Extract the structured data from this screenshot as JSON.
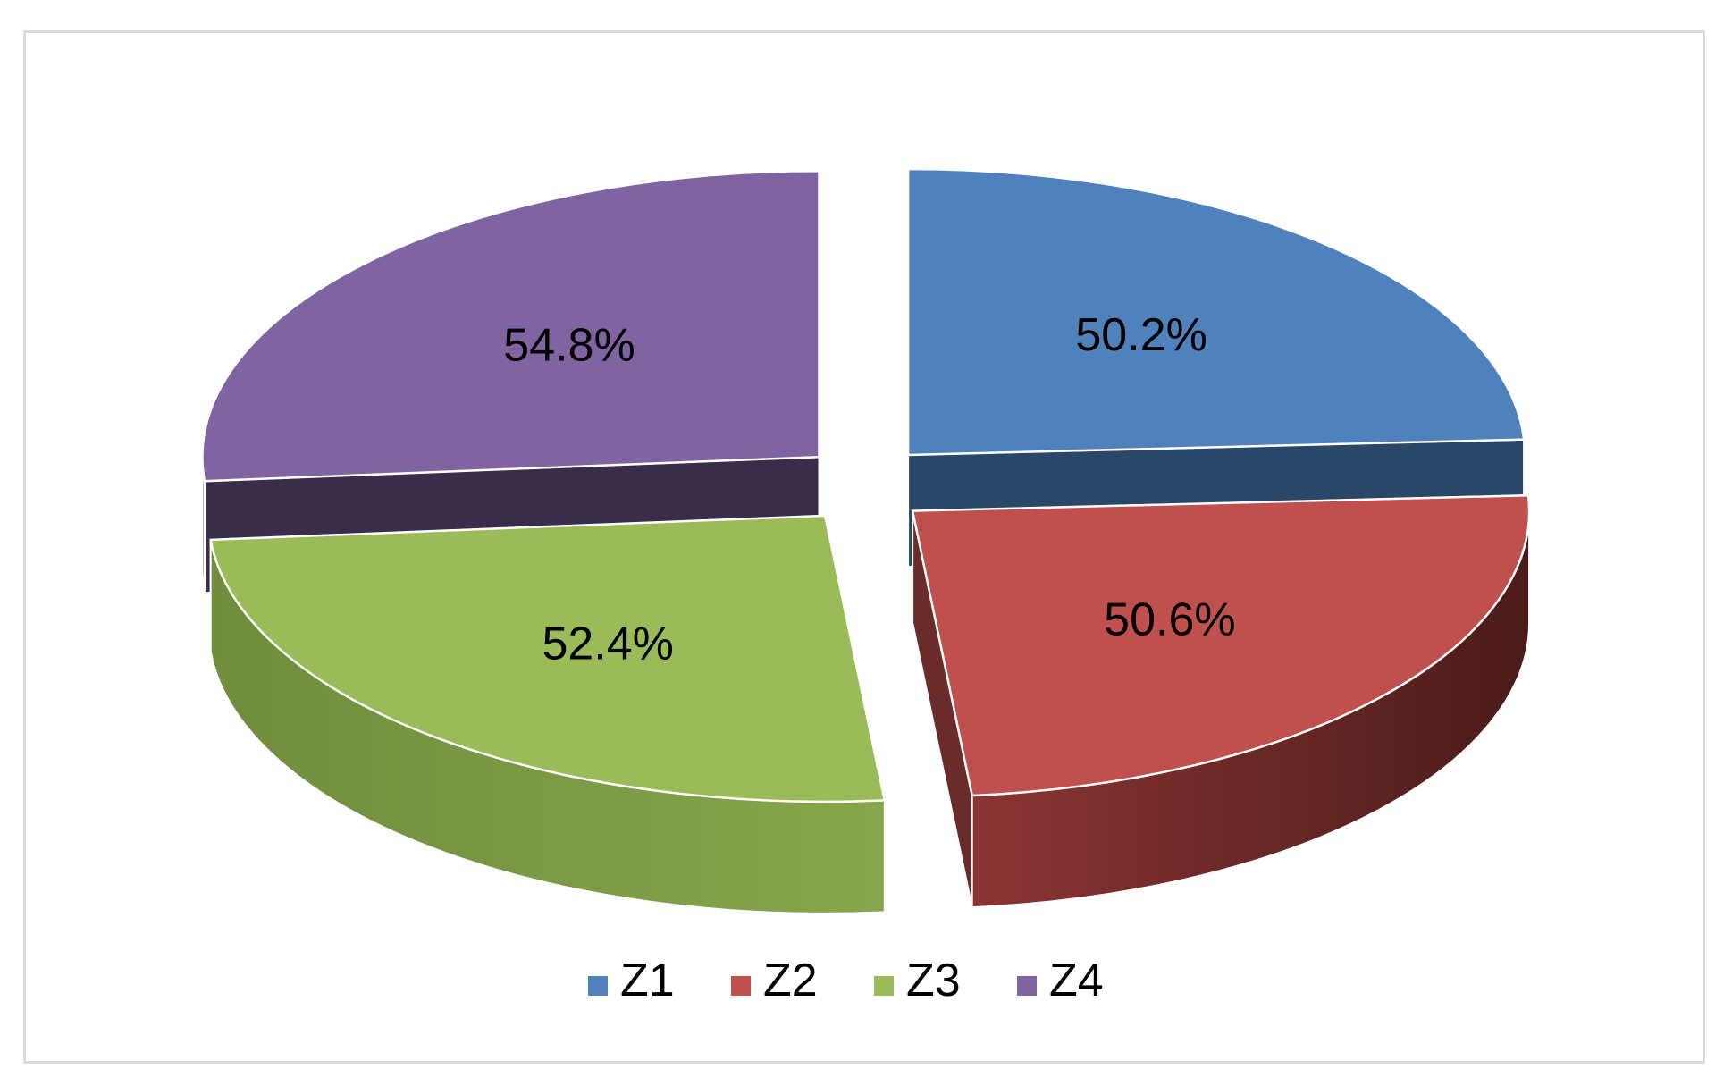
{
  "chart_data": {
    "type": "pie",
    "style": "3d-exploded",
    "categories": [
      "Z1",
      "Z2",
      "Z3",
      "Z4"
    ],
    "values": [
      50.2,
      50.6,
      52.4,
      54.8
    ],
    "labels": [
      "50.2%",
      "50.6%",
      "52.4%",
      "54.8%"
    ],
    "colors": [
      "#4f81bd",
      "#c0504d",
      "#9bbb59",
      "#8064a2"
    ],
    "legend_position": "bottom"
  }
}
